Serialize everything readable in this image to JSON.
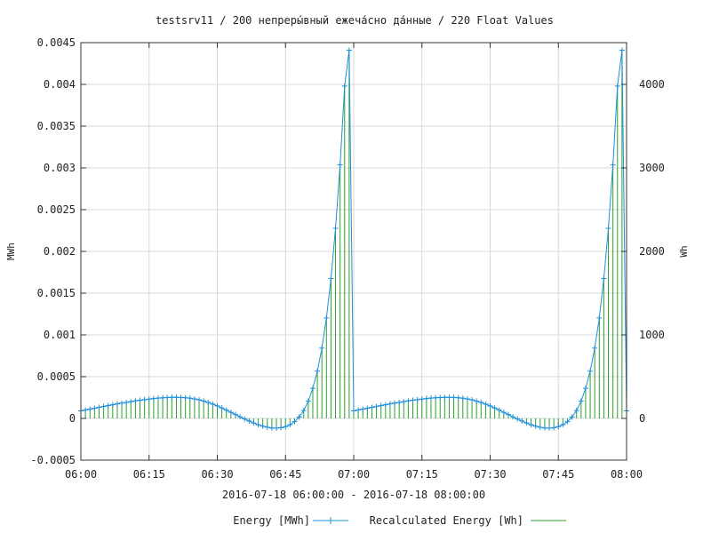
{
  "chart_data": {
    "type": "line",
    "title": "testsrv11 / 200 непреры́вный ежеча́сно да́нные / 220 Float Values",
    "subtitle": "2016-07-18 06:00:00 - 2016-07-18 08:00:00",
    "xlabel": "",
    "ylabel": "MWh",
    "y2label": "Wh",
    "x_ticks": [
      "06:00",
      "06:15",
      "06:30",
      "06:45",
      "07:00",
      "07:15",
      "07:30",
      "07:45",
      "08:00"
    ],
    "xlim": [
      "06:00",
      "08:00"
    ],
    "ylim": [
      -0.0005,
      0.0045
    ],
    "y_ticks": [
      "-0.0005",
      "0",
      "0.0005",
      "0.001",
      "0.0015",
      "0.002",
      "0.0025",
      "0.003",
      "0.0035",
      "0.004",
      "0.0045"
    ],
    "y2lim": [
      -500,
      4500
    ],
    "y2_ticks": [
      "0",
      "1000",
      "2000",
      "3000",
      "4000"
    ],
    "grid": true,
    "legend_position": "bottom",
    "series": [
      {
        "name": "Energy [MWh]",
        "axis": "left",
        "style": "line-with-cross-markers",
        "color": "#1f8fd8",
        "x": [
          "06:00",
          "06:01",
          "06:02",
          "06:03",
          "06:04",
          "06:05",
          "06:06",
          "06:07",
          "06:08",
          "06:09",
          "06:10",
          "06:11",
          "06:12",
          "06:13",
          "06:14",
          "06:15",
          "06:16",
          "06:17",
          "06:18",
          "06:19",
          "06:20",
          "06:21",
          "06:22",
          "06:23",
          "06:24",
          "06:25",
          "06:26",
          "06:27",
          "06:28",
          "06:29",
          "06:30",
          "06:31",
          "06:32",
          "06:33",
          "06:34",
          "06:35",
          "06:36",
          "06:37",
          "06:38",
          "06:39",
          "06:40",
          "06:41",
          "06:42",
          "06:43",
          "06:44",
          "06:45",
          "06:46",
          "06:47",
          "06:48",
          "06:49",
          "06:50",
          "06:51",
          "06:52",
          "06:53",
          "06:54",
          "06:55",
          "06:56",
          "06:57",
          "06:58",
          "06:59",
          "07:00",
          "07:01",
          "07:02",
          "07:03",
          "07:04",
          "07:05",
          "07:06",
          "07:07",
          "07:08",
          "07:09",
          "07:10",
          "07:11",
          "07:12",
          "07:13",
          "07:14",
          "07:15",
          "07:16",
          "07:17",
          "07:18",
          "07:19",
          "07:20",
          "07:21",
          "07:22",
          "07:23",
          "07:24",
          "07:25",
          "07:26",
          "07:27",
          "07:28",
          "07:29",
          "07:30",
          "07:31",
          "07:32",
          "07:33",
          "07:34",
          "07:35",
          "07:36",
          "07:37",
          "07:38",
          "07:39",
          "07:40",
          "07:41",
          "07:42",
          "07:43",
          "07:44",
          "07:45",
          "07:46",
          "07:47",
          "07:48",
          "07:49",
          "07:50",
          "07:51",
          "07:52",
          "07:53",
          "07:54",
          "07:55",
          "07:56",
          "07:57",
          "07:58",
          "07:59",
          "08:00"
        ],
        "values": [
          9e-05,
          0.000101,
          0.000112,
          0.000122,
          0.000133,
          0.000143,
          0.000154,
          0.000164,
          0.000174,
          0.000183,
          0.000192,
          0.000201,
          0.00021,
          0.000218,
          0.000225,
          0.000232,
          0.000238,
          0.000243,
          0.000247,
          0.00025,
          0.000252,
          0.000252,
          0.000251,
          0.000248,
          0.000242,
          0.000233,
          0.000222,
          0.000208,
          0.000191,
          0.000171,
          0.000149,
          0.000125,
          9.9e-05,
          7.3e-05,
          4.6e-05,
          1.9e-05,
          -7e-06,
          -3.2e-05,
          -5.5e-05,
          -7.6e-05,
          -9.3e-05,
          -0.000106,
          -0.000114,
          -0.000117,
          -0.000112,
          -9.9e-05,
          -7.6e-05,
          -3.9e-05,
          1.6e-05,
          9.5e-05,
          0.000207,
          0.00036,
          0.000566,
          0.000842,
          0.001204,
          0.001675,
          0.002277,
          0.003036,
          0.00398,
          0.00441,
          9e-05,
          0.000101,
          0.000112,
          0.000122,
          0.000133,
          0.000143,
          0.000154,
          0.000164,
          0.000174,
          0.000183,
          0.000192,
          0.000201,
          0.00021,
          0.000218,
          0.000225,
          0.000232,
          0.000238,
          0.000243,
          0.000247,
          0.00025,
          0.000252,
          0.000252,
          0.000251,
          0.000248,
          0.000242,
          0.000233,
          0.000222,
          0.000208,
          0.000191,
          0.000171,
          0.000149,
          0.000125,
          9.9e-05,
          7.3e-05,
          4.6e-05,
          1.9e-05,
          -7e-06,
          -3.2e-05,
          -5.5e-05,
          -7.6e-05,
          -9.3e-05,
          -0.000106,
          -0.000114,
          -0.000117,
          -0.000112,
          -9.9e-05,
          -7.6e-05,
          -3.9e-05,
          1.6e-05,
          9.5e-05,
          0.000207,
          0.00036,
          0.000566,
          0.000842,
          0.001204,
          0.001675,
          0.002277,
          0.003036,
          0.00398,
          0.00441,
          9e-05
        ]
      },
      {
        "name": "Recalculated Energy [Wh]",
        "axis": "right",
        "style": "impulses",
        "color": "#2ca02c",
        "x": [
          "06:00",
          "06:01",
          "06:02",
          "06:03",
          "06:04",
          "06:05",
          "06:06",
          "06:07",
          "06:08",
          "06:09",
          "06:10",
          "06:11",
          "06:12",
          "06:13",
          "06:14",
          "06:15",
          "06:16",
          "06:17",
          "06:18",
          "06:19",
          "06:20",
          "06:21",
          "06:22",
          "06:23",
          "06:24",
          "06:25",
          "06:26",
          "06:27",
          "06:28",
          "06:29",
          "06:30",
          "06:31",
          "06:32",
          "06:33",
          "06:34",
          "06:35",
          "06:36",
          "06:37",
          "06:38",
          "06:39",
          "06:40",
          "06:41",
          "06:42",
          "06:43",
          "06:44",
          "06:45",
          "06:46",
          "06:47",
          "06:48",
          "06:49",
          "06:50",
          "06:51",
          "06:52",
          "06:53",
          "06:54",
          "06:55",
          "06:56",
          "06:57",
          "06:58",
          "06:59",
          "07:00",
          "07:01",
          "07:02",
          "07:03",
          "07:04",
          "07:05",
          "07:06",
          "07:07",
          "07:08",
          "07:09",
          "07:10",
          "07:11",
          "07:12",
          "07:13",
          "07:14",
          "07:15",
          "07:16",
          "07:17",
          "07:18",
          "07:19",
          "07:20",
          "07:21",
          "07:22",
          "07:23",
          "07:24",
          "07:25",
          "07:26",
          "07:27",
          "07:28",
          "07:29",
          "07:30",
          "07:31",
          "07:32",
          "07:33",
          "07:34",
          "07:35",
          "07:36",
          "07:37",
          "07:38",
          "07:39",
          "07:40",
          "07:41",
          "07:42",
          "07:43",
          "07:44",
          "07:45",
          "07:46",
          "07:47",
          "07:48",
          "07:49",
          "07:50",
          "07:51",
          "07:52",
          "07:53",
          "07:54",
          "07:55",
          "07:56",
          "07:57",
          "07:58",
          "07:59",
          "08:00"
        ],
        "values": [
          90,
          101,
          112,
          122,
          133,
          143,
          154,
          164,
          174,
          183,
          192,
          201,
          210,
          218,
          225,
          232,
          238,
          243,
          247,
          250,
          252,
          252,
          251,
          248,
          242,
          233,
          222,
          208,
          191,
          171,
          149,
          125,
          99,
          73,
          46,
          19,
          -7,
          -32,
          -55,
          -76,
          -93,
          -106,
          -114,
          -117,
          -112,
          -99,
          -76,
          -39,
          16,
          95,
          207,
          360,
          566,
          842,
          1204,
          1675,
          2277,
          3036,
          3980,
          4410,
          90,
          101,
          112,
          122,
          133,
          143,
          154,
          164,
          174,
          183,
          192,
          201,
          210,
          218,
          225,
          232,
          238,
          243,
          247,
          250,
          252,
          252,
          251,
          248,
          242,
          233,
          222,
          208,
          191,
          171,
          149,
          125,
          99,
          73,
          46,
          19,
          -7,
          -32,
          -55,
          -76,
          -93,
          -106,
          -114,
          -117,
          -112,
          -99,
          -76,
          -39,
          16,
          95,
          207,
          360,
          566,
          842,
          1204,
          1675,
          2277,
          3036,
          3980,
          4410,
          90
        ]
      }
    ]
  },
  "colors": {
    "series1": "#1f8fd8",
    "series2": "#2ca02c",
    "grid": "#d8d8d8",
    "axis": "#333333"
  }
}
